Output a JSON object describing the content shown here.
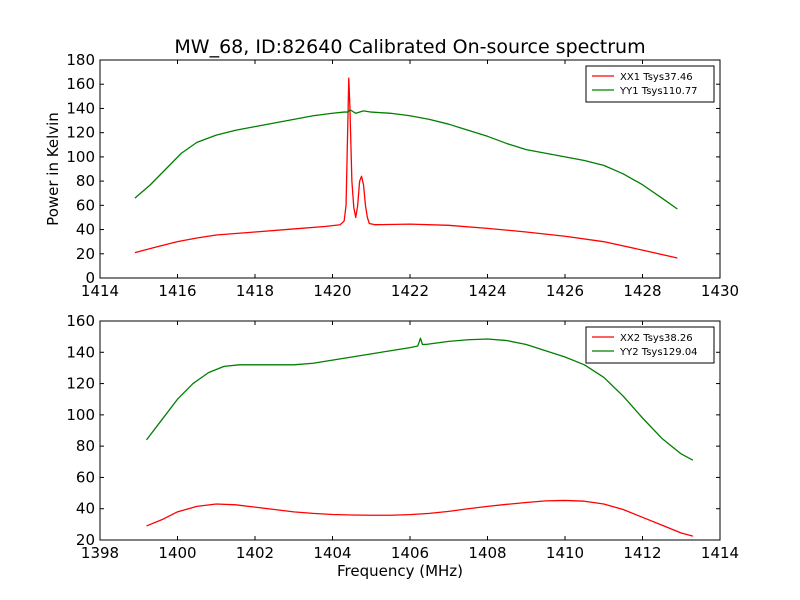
{
  "figure": {
    "title": "MW_68, ID:82640 Calibrated On-source spectrum"
  },
  "colors": {
    "xx": "#ff0000",
    "yy": "#007f00"
  },
  "chart_data": [
    {
      "type": "line",
      "title": "MW_68, ID:82640 Calibrated On-source spectrum",
      "xlabel": "",
      "ylabel": "Power in Kelvin",
      "xlim": [
        1414,
        1430
      ],
      "ylim": [
        0,
        180
      ],
      "xticks": [
        "1414",
        "1416",
        "1418",
        "1420",
        "1422",
        "1424",
        "1426",
        "1428",
        "1430"
      ],
      "yticks": [
        "0",
        "20",
        "40",
        "60",
        "80",
        "100",
        "120",
        "140",
        "160",
        "180"
      ],
      "grid": false,
      "legend_position": "top-right",
      "series": [
        {
          "name": "XX1 Tsys37.46",
          "color": "#ff0000",
          "x": [
            1414.9,
            1415.5,
            1416.0,
            1416.5,
            1417.0,
            1418.0,
            1419.0,
            1419.8,
            1420.2,
            1420.3,
            1420.35,
            1420.42,
            1420.45,
            1420.5,
            1420.55,
            1420.6,
            1420.65,
            1420.7,
            1420.75,
            1420.8,
            1420.85,
            1420.9,
            1420.95,
            1421.1,
            1422.0,
            1423.0,
            1424.0,
            1425.0,
            1426.0,
            1427.0,
            1428.0,
            1428.9
          ],
          "y": [
            21,
            26,
            30,
            33,
            35.5,
            38,
            40.5,
            42.5,
            44,
            47,
            60,
            165,
            140,
            80,
            58,
            50,
            60,
            80,
            84,
            77,
            60,
            50,
            45,
            44,
            44.5,
            43.5,
            41,
            38,
            34.5,
            30,
            23,
            16.5
          ]
        },
        {
          "name": "YY1 Tsys110.77",
          "color": "#007f00",
          "x": [
            1414.9,
            1415.3,
            1415.7,
            1416.1,
            1416.5,
            1417.0,
            1417.5,
            1418.0,
            1418.5,
            1419.0,
            1419.5,
            1420.0,
            1420.3,
            1420.4,
            1420.45,
            1420.5,
            1420.6,
            1420.8,
            1421.0,
            1421.5,
            1422.0,
            1422.5,
            1423.0,
            1423.5,
            1424.0,
            1424.5,
            1425.0,
            1425.5,
            1426.0,
            1426.5,
            1427.0,
            1427.5,
            1428.0,
            1428.5,
            1428.9
          ],
          "y": [
            66,
            77,
            90,
            103,
            112,
            118,
            122,
            125,
            128,
            131,
            134,
            136,
            137,
            137,
            139,
            138,
            136,
            138,
            137,
            136,
            134,
            131,
            127,
            122,
            117,
            111,
            106,
            103,
            100,
            97,
            93,
            86,
            77,
            66,
            57
          ]
        }
      ]
    },
    {
      "type": "line",
      "title": "",
      "xlabel": "Frequency (MHz)",
      "ylabel": "",
      "xlim": [
        1398,
        1414
      ],
      "ylim": [
        20,
        160
      ],
      "xticks": [
        "1398",
        "1400",
        "1402",
        "1404",
        "1406",
        "1408",
        "1410",
        "1412",
        "1414"
      ],
      "yticks": [
        "20",
        "40",
        "60",
        "80",
        "100",
        "120",
        "140",
        "160"
      ],
      "grid": false,
      "legend_position": "top-right",
      "series": [
        {
          "name": "XX2 Tsys38.26",
          "color": "#ff0000",
          "x": [
            1399.2,
            1399.6,
            1400.0,
            1400.5,
            1401.0,
            1401.5,
            1402.0,
            1402.5,
            1403.0,
            1403.5,
            1404.0,
            1404.5,
            1405.0,
            1405.5,
            1406.0,
            1406.5,
            1407.0,
            1407.5,
            1408.0,
            1408.5,
            1409.0,
            1409.5,
            1410.0,
            1410.5,
            1411.0,
            1411.5,
            1412.0,
            1412.5,
            1413.0,
            1413.3
          ],
          "y": [
            29,
            33,
            38,
            41.5,
            43,
            42.5,
            41,
            39.5,
            38,
            37,
            36.3,
            36,
            35.8,
            35.8,
            36.2,
            37,
            38.3,
            40,
            41.5,
            42.8,
            44,
            45,
            45.3,
            44.8,
            43,
            39.5,
            34.5,
            29.5,
            24.5,
            22.5
          ]
        },
        {
          "name": "YY2 Tsys129.04",
          "color": "#007f00",
          "x": [
            1399.2,
            1399.6,
            1400.0,
            1400.4,
            1400.8,
            1401.2,
            1401.6,
            1402.0,
            1402.5,
            1403.0,
            1403.5,
            1404.0,
            1404.5,
            1405.0,
            1405.5,
            1406.0,
            1406.2,
            1406.27,
            1406.32,
            1406.4,
            1407.0,
            1407.5,
            1408.0,
            1408.5,
            1409.0,
            1409.5,
            1410.0,
            1410.5,
            1411.0,
            1411.5,
            1412.0,
            1412.5,
            1413.0,
            1413.3
          ],
          "y": [
            84,
            97,
            110,
            120,
            127,
            131,
            132,
            132,
            132,
            132,
            133,
            135,
            137,
            139,
            141,
            143,
            144,
            149,
            145,
            145,
            147,
            148,
            148.5,
            147.5,
            145,
            141,
            137,
            132,
            124,
            112,
            98,
            85,
            75,
            71
          ]
        }
      ]
    }
  ]
}
